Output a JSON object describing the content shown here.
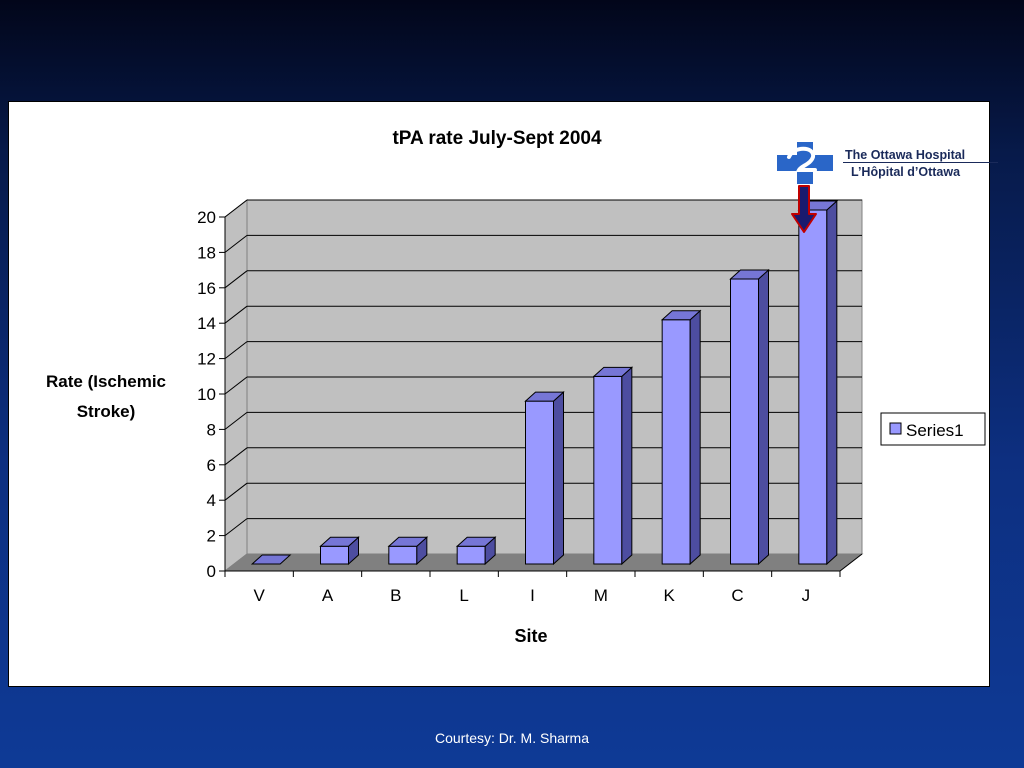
{
  "chart_data": {
    "type": "bar",
    "title": "tPA rate July-Sept 2004",
    "xlabel": "Site",
    "ylabel_lines": [
      "Rate (Ischemic",
      "Stroke)"
    ],
    "categories": [
      "V",
      "A",
      "B",
      "L",
      "I",
      "M",
      "K",
      "C",
      "J"
    ],
    "series": [
      {
        "name": "Series1",
        "values": [
          0,
          1,
          1,
          1,
          9.2,
          10.6,
          13.8,
          16.1,
          20
        ]
      }
    ],
    "ylim": [
      0,
      20
    ],
    "yticks": [
      "0",
      "2",
      "4",
      "6",
      "8",
      "10",
      "12",
      "14",
      "16",
      "18",
      "20"
    ],
    "grid": true,
    "legend_position": "right",
    "three_d": true
  },
  "colors": {
    "bar_front": "#9999ff",
    "bar_side": "#4d4da0",
    "bar_top": "#7676d6",
    "plot_wall": "#c0c0c0",
    "plot_floor": "#808080",
    "arrow": "#1a1a6e",
    "arrow_outline": "#c00000",
    "logo_blue": "#2a66c8"
  },
  "logo": {
    "line1": "The Ottawa Hospital",
    "line2": "L’Hôpital d’Ottawa",
    "icon": "hospital-cross-logo-icon"
  },
  "annotation": {
    "icon": "down-arrow-icon",
    "points_to": "J"
  },
  "footer": {
    "credit": "Courtesy: Dr. M. Sharma"
  }
}
